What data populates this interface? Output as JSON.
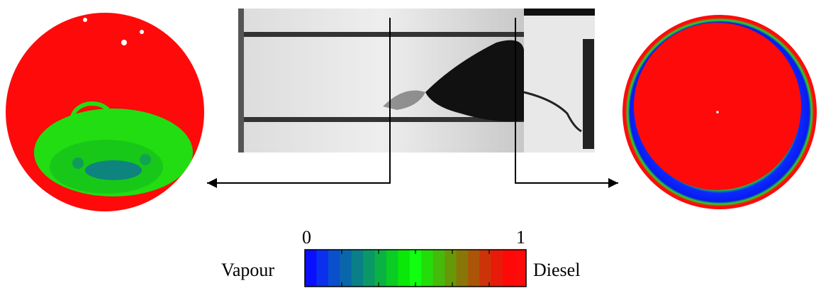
{
  "colorbar": {
    "min_label": "0",
    "max_label": "1",
    "left_label": "Vapour",
    "right_label": "Diesel",
    "stops": [
      "#0a10ff",
      "#0a30ee",
      "#0a4fcc",
      "#0a66aa",
      "#0a7f88",
      "#0a9966",
      "#0ab244",
      "#0acc22",
      "#0ae80a",
      "#10ff10",
      "#22dd0a",
      "#44bb0a",
      "#669908",
      "#887708",
      "#aa5508",
      "#cc3308",
      "#e81a0a",
      "#ff0808",
      "#ff0a0a"
    ],
    "tick_count": 6
  },
  "colors": {
    "vapour": "#0a1aff",
    "mid": "#10ff10",
    "diesel": "#ff0a0a",
    "arrow": "#000000"
  },
  "left_section": {
    "description_icon": "tomography-cross-section-icon"
  },
  "right_section": {
    "description_icon": "tomography-cross-section-icon"
  },
  "photo": {
    "description_icon": "nozzle-flow-photograph-icon"
  }
}
